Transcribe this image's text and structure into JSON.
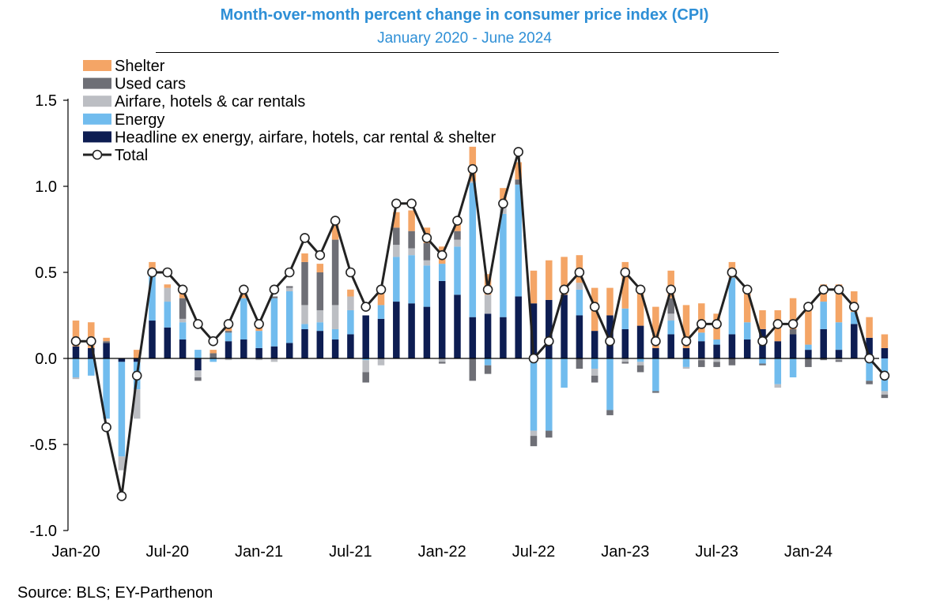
{
  "header": {
    "title": "Month-over-month percent change in consumer price index (CPI)",
    "subtitle": "January 2020 - June 2024"
  },
  "footer": {
    "source": "Source: BLS; EY-Parthenon"
  },
  "colors": {
    "title": "#2E8FD6",
    "shelter": "#F4A566",
    "used_cars": "#6E6F76",
    "airfare_hotels_car_rentals": "#BCBEC3",
    "energy": "#71BCEE",
    "headline_ex": "#0D1D52",
    "total_line": "#222222"
  },
  "chart_data": {
    "type": "bar",
    "stacked": true,
    "title": "Month-over-month percent change in consumer price index (CPI)",
    "subtitle": "January 2020 - June 2024",
    "xlabel": "",
    "ylabel": "",
    "ylim": [
      -1.0,
      1.5
    ],
    "yticks": [
      "1.5",
      "1.0",
      "0.5",
      "0.0",
      "-0.5",
      "-1.0"
    ],
    "ytick_values": [
      1.5,
      1.0,
      0.5,
      0.0,
      -0.5,
      -1.0
    ],
    "xtick_labels": [
      "Jan-20",
      "Jul-20",
      "Jan-21",
      "Jul-21",
      "Jan-22",
      "Jul-22",
      "Jan-23",
      "Jul-23",
      "Jan-24"
    ],
    "xtick_indices": [
      0,
      6,
      12,
      18,
      24,
      30,
      36,
      42,
      48
    ],
    "legend_position": "top-left",
    "grid": false,
    "categories": [
      "Jan-20",
      "Feb-20",
      "Mar-20",
      "Apr-20",
      "May-20",
      "Jun-20",
      "Jul-20",
      "Aug-20",
      "Sep-20",
      "Oct-20",
      "Nov-20",
      "Dec-20",
      "Jan-21",
      "Feb-21",
      "Mar-21",
      "Apr-21",
      "May-21",
      "Jun-21",
      "Jul-21",
      "Aug-21",
      "Sep-21",
      "Oct-21",
      "Nov-21",
      "Dec-21",
      "Jan-22",
      "Feb-22",
      "Mar-22",
      "Apr-22",
      "May-22",
      "Jun-22",
      "Jul-22",
      "Aug-22",
      "Sep-22",
      "Oct-22",
      "Nov-22",
      "Dec-22",
      "Jan-23",
      "Feb-23",
      "Mar-23",
      "Apr-23",
      "May-23",
      "Jun-23",
      "Jul-23",
      "Aug-23",
      "Sep-23",
      "Oct-23",
      "Nov-23",
      "Dec-23",
      "Jan-24",
      "Feb-24",
      "Mar-24",
      "Apr-24",
      "May-24",
      "Jun-24"
    ],
    "series": [
      {
        "name": "Headline ex energy, airfare, hotels, car rental & shelter",
        "key": "headline_ex",
        "values": [
          0.07,
          0.06,
          0.09,
          -0.02,
          -0.02,
          0.22,
          0.18,
          0.11,
          -0.07,
          0.0,
          0.1,
          0.11,
          0.06,
          0.07,
          0.09,
          0.17,
          0.16,
          0.11,
          0.14,
          0.25,
          0.23,
          0.33,
          0.32,
          0.3,
          0.45,
          0.37,
          0.24,
          0.26,
          0.24,
          0.36,
          0.32,
          0.34,
          0.37,
          0.25,
          0.16,
          0.25,
          0.17,
          0.19,
          0.06,
          0.14,
          0.06,
          0.1,
          0.08,
          0.14,
          0.11,
          0.17,
          0.1,
          0.14,
          0.05,
          0.17,
          0.05,
          0.2,
          0.12,
          0.06
        ]
      },
      {
        "name": "Energy",
        "key": "energy",
        "values": [
          -0.11,
          -0.1,
          -0.35,
          -0.55,
          -0.16,
          0.28,
          0.15,
          0.1,
          0.05,
          -0.02,
          0.05,
          0.24,
          0.1,
          0.28,
          0.3,
          0.03,
          0.05,
          0.06,
          0.14,
          -0.01,
          0.08,
          0.26,
          0.28,
          0.24,
          0.1,
          0.28,
          0.78,
          -0.04,
          0.6,
          0.65,
          -0.42,
          -0.42,
          -0.17,
          0.15,
          -0.06,
          -0.3,
          0.12,
          -0.02,
          -0.19,
          0.08,
          -0.05,
          0.05,
          0.03,
          0.33,
          0.1,
          -0.03,
          -0.15,
          -0.11,
          0.03,
          0.16,
          0.16,
          0.07,
          -0.13,
          -0.19
        ]
      },
      {
        "name": "Airfare, hotels & car rentals",
        "key": "airfare",
        "values": [
          -0.01,
          0.0,
          0.0,
          -0.08,
          -0.17,
          0.0,
          0.08,
          0.02,
          -0.04,
          0.0,
          -0.01,
          0.0,
          -0.01,
          -0.02,
          0.02,
          0.11,
          0.07,
          0.14,
          0.08,
          -0.07,
          -0.04,
          0.07,
          0.04,
          0.03,
          -0.02,
          0.04,
          0.01,
          0.11,
          0.07,
          0.0,
          -0.03,
          0.0,
          0.0,
          0.04,
          -0.04,
          0.0,
          -0.02,
          -0.02,
          0.0,
          0.04,
          -0.01,
          -0.01,
          -0.02,
          0.0,
          0.0,
          0.0,
          -0.02,
          0.0,
          0.0,
          0.0,
          -0.01,
          0.0,
          0.0,
          -0.02
        ]
      },
      {
        "name": "Used cars",
        "key": "used_cars",
        "values": [
          0.0,
          0.0,
          0.01,
          0.0,
          0.0,
          0.0,
          0.0,
          0.12,
          -0.02,
          0.03,
          0.01,
          0.0,
          0.0,
          0.01,
          0.01,
          0.25,
          0.22,
          0.38,
          0.0,
          -0.06,
          0.0,
          0.1,
          0.1,
          0.1,
          -0.01,
          0.05,
          -0.13,
          -0.05,
          0.0,
          0.03,
          -0.06,
          -0.04,
          0.0,
          -0.06,
          -0.04,
          -0.03,
          -0.01,
          -0.04,
          -0.01,
          0.09,
          0.0,
          -0.04,
          -0.03,
          -0.04,
          0.0,
          -0.01,
          0.0,
          0.03,
          -0.05,
          -0.01,
          -0.01,
          0.0,
          -0.02,
          -0.02
        ]
      },
      {
        "name": "Shelter",
        "key": "shelter",
        "values": [
          0.15,
          0.15,
          0.02,
          0.0,
          0.05,
          0.06,
          0.02,
          0.04,
          0.0,
          0.02,
          0.05,
          0.04,
          0.03,
          0.0,
          0.0,
          0.05,
          0.05,
          0.1,
          0.04,
          0.0,
          0.07,
          0.09,
          0.12,
          0.09,
          0.1,
          0.05,
          0.2,
          0.12,
          0.08,
          0.1,
          0.19,
          0.23,
          0.22,
          0.16,
          0.25,
          0.16,
          0.27,
          0.21,
          0.24,
          0.16,
          0.25,
          0.17,
          0.15,
          0.09,
          0.21,
          0.11,
          0.18,
          0.18,
          0.24,
          0.1,
          0.22,
          0.12,
          0.12,
          0.08
        ]
      }
    ],
    "total": {
      "name": "Total",
      "values": [
        0.1,
        0.1,
        -0.4,
        -0.8,
        -0.1,
        0.5,
        0.5,
        0.4,
        0.2,
        0.1,
        0.2,
        0.4,
        0.2,
        0.4,
        0.5,
        0.7,
        0.6,
        0.8,
        0.5,
        0.3,
        0.4,
        0.9,
        0.9,
        0.7,
        0.6,
        0.8,
        1.1,
        0.4,
        0.9,
        1.2,
        0.0,
        0.1,
        0.4,
        0.5,
        0.3,
        0.1,
        0.5,
        0.4,
        0.1,
        0.4,
        0.1,
        0.2,
        0.2,
        0.5,
        0.4,
        0.1,
        0.2,
        0.2,
        0.3,
        0.4,
        0.4,
        0.3,
        0.0,
        -0.1
      ]
    }
  }
}
